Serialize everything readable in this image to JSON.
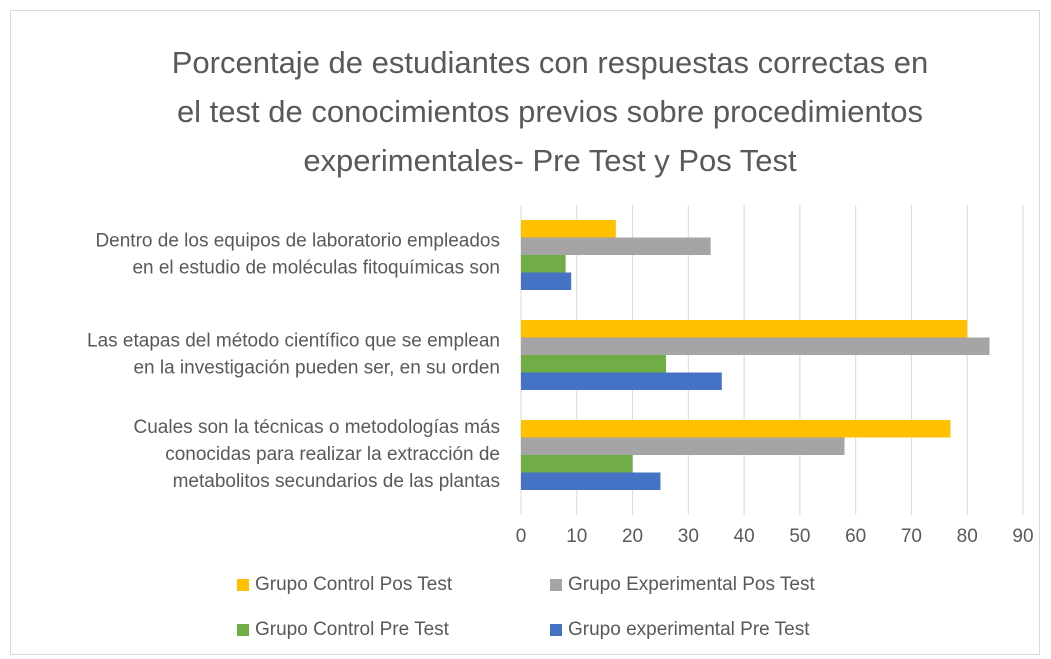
{
  "chart_data": {
    "type": "hbar",
    "title": [
      "Porcentaje de estudiantes con respuestas correctas en",
      "el test de conocimientos previos sobre procedimientos",
      "experimentales- Pre Test y Pos Test"
    ],
    "categories": [
      [
        "Dentro de los equipos de laboratorio empleados",
        "en el estudio de moléculas fitoquímicas son"
      ],
      [
        "Las etapas del método científico que se emplean",
        "en la investigación pueden ser, en su orden"
      ],
      [
        "Cuales son la técnicas o metodologías más",
        "conocidas para realizar la extracción de",
        "metabolitos secundarios de las plantas"
      ]
    ],
    "series": [
      {
        "name": "Grupo Control Pos Test",
        "color": "#FFC000",
        "values": [
          17,
          80,
          77
        ]
      },
      {
        "name": "Grupo Experimental Pos Test",
        "color": "#A5A5A5",
        "values": [
          34,
          84,
          58
        ]
      },
      {
        "name": "Grupo Control Pre Test",
        "color": "#70AD47",
        "values": [
          8,
          26,
          20
        ]
      },
      {
        "name": "Grupo experimental Pre Test",
        "color": "#4472C4",
        "values": [
          9,
          36,
          25
        ]
      }
    ],
    "xlim": [
      0,
      90
    ],
    "xticks": [
      0,
      10,
      20,
      30,
      40,
      50,
      60,
      70,
      80,
      90
    ],
    "grid": true,
    "legend": "bottom"
  }
}
